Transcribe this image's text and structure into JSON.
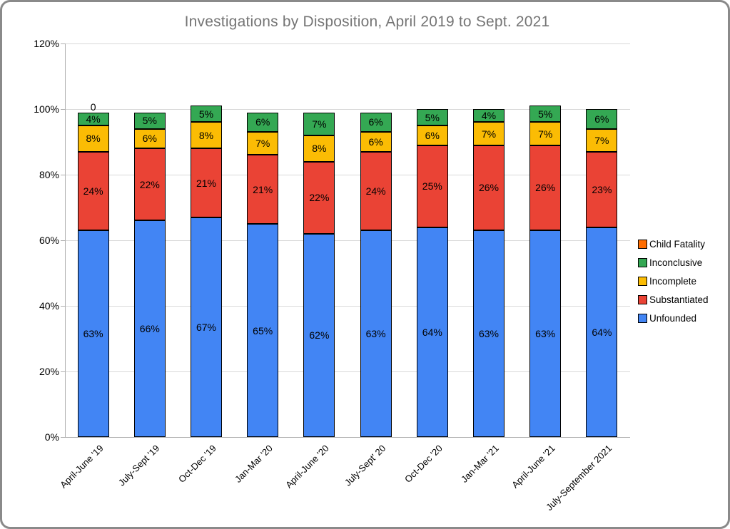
{
  "frame": {
    "background": "#ffffff",
    "border_color": "#8a8a8a"
  },
  "chart_data": {
    "type": "bar",
    "stacked": true,
    "title": "Investigations by Disposition, April 2019 to Sept. 2021",
    "title_color": "#757575",
    "categories": [
      "April-June '19",
      "July-Sept '19",
      "Oct-Dec '19",
      "Jan-Mar '20",
      "April-June '20",
      "July-Sept' 20",
      "Oct-Dec '20",
      "Jan-Mar '21",
      "April-June '21",
      "July-September 2021"
    ],
    "series": [
      {
        "name": "Unfounded",
        "color": "#4285F4",
        "values": [
          63,
          66,
          67,
          65,
          62,
          63,
          64,
          63,
          63,
          64
        ]
      },
      {
        "name": "Substantiated",
        "color": "#EA4335",
        "values": [
          24,
          22,
          21,
          21,
          22,
          24,
          25,
          26,
          26,
          23
        ]
      },
      {
        "name": "Incomplete",
        "color": "#FBBC04",
        "values": [
          8,
          6,
          8,
          7,
          8,
          6,
          6,
          7,
          7,
          7
        ]
      },
      {
        "name": "Inconclusive",
        "color": "#34A853",
        "values": [
          4,
          5,
          5,
          6,
          7,
          6,
          5,
          4,
          5,
          6
        ]
      },
      {
        "name": "Child Fatality",
        "color": "#FF6D01",
        "values": [
          0,
          0,
          0,
          0,
          0,
          0,
          0,
          0,
          0,
          0
        ]
      }
    ],
    "data_label_suffix": "%",
    "zero_label": {
      "category_index": 0,
      "text": "0",
      "series": "Child Fatality"
    },
    "y_axis": {
      "min": 0,
      "max": 120,
      "tick_step": 20,
      "tick_labels": [
        "0%",
        "20%",
        "40%",
        "60%",
        "80%",
        "100%",
        "120%"
      ]
    },
    "grid": true,
    "grid_color": "#d9d9d9",
    "axis_color": "#b0b0b0",
    "legend_position": "right",
    "legend": [
      {
        "label": "Child Fatality",
        "color": "#FF6D01"
      },
      {
        "label": "Inconclusive",
        "color": "#34A853"
      },
      {
        "label": "Incomplete",
        "color": "#FBBC04"
      },
      {
        "label": "Substantiated",
        "color": "#EA4335"
      },
      {
        "label": "Unfounded",
        "color": "#4285F4"
      }
    ]
  }
}
